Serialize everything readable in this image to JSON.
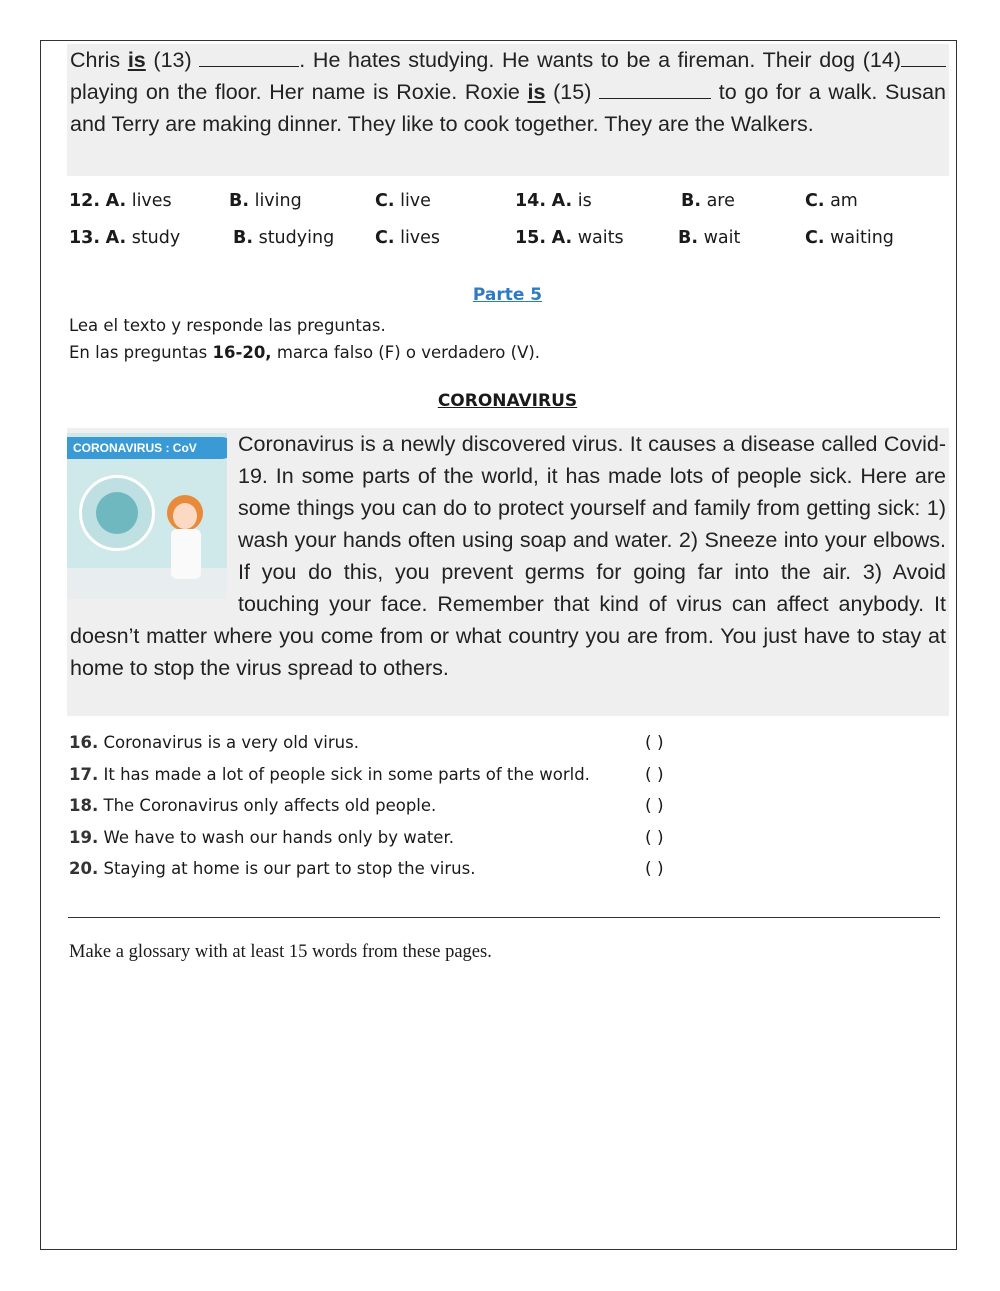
{
  "passage1": {
    "t1": "Chris ",
    "is1": "is",
    "t2": " (13) ",
    "t3": ". He hates studying. He wants to be a fireman. Their dog (14)",
    "t4": " playing on the floor. Her name is Roxie. Roxie ",
    "is2": "is",
    "t5": " (15) ",
    "t6": " to go for a walk. Susan and Terry are making dinner. They like to cook together. They are the Walkers."
  },
  "options": [
    {
      "num": "12.",
      "a": "lives",
      "b": "living",
      "c": "live"
    },
    {
      "num": "13.",
      "a": "study",
      "b": "studying",
      "c": "lives"
    },
    {
      "num": "14.",
      "a": "is",
      "b": "are",
      "c": "am"
    },
    {
      "num": "15.",
      "a": "waits",
      "b": "wait",
      "c": "waiting"
    }
  ],
  "letters": {
    "a": "A.",
    "b": "B.",
    "c": "C."
  },
  "section": {
    "title": "Parte 5",
    "instr1": "Lea el texto y responde las preguntas.",
    "instr2a": "En las preguntas ",
    "instr2b": "16-20,",
    "instr2c": " marca falso (F) o verdadero (V).",
    "heading": "CORONAVIRUS"
  },
  "image": {
    "banner": "CORONAVIRUS : CoV",
    "bubble": "CoV"
  },
  "passage2": "Coronavirus is a newly discovered virus. It causes a disease called Covid-19. In some parts of the world, it has made lots of people sick. Here are some things you can do to protect yourself and family from getting sick: 1) wash your hands often using soap and water. 2) Sneeze into your elbows. If you do this, you prevent germs for going far into the air. 3) Avoid touching your face. Remember that kind of virus can affect anybody. It doesn’t matter where you come from or what country you are from. You just have to stay at home to stop the virus spread to others.",
  "questions": [
    {
      "num": "16.",
      "text": "Coronavirus is a very old virus.",
      "answer": "(    )"
    },
    {
      "num": "17.",
      "text": "It has made a lot of people sick in some parts of the world.",
      "answer": "(    )"
    },
    {
      "num": "18.",
      "text": "The Coronavirus only affects old people.",
      "answer": "(    )"
    },
    {
      "num": "19.",
      "text": "We have to wash our hands only by water.",
      "answer": "(    )"
    },
    {
      "num": "20.",
      "text": "Staying at home is our part to stop the virus.",
      "answer": "(    )"
    }
  ],
  "glossary": "Make a glossary with at least 15 words from these pages.",
  "colors": {
    "accent": "#2e7bc4",
    "box": "#efefef"
  }
}
